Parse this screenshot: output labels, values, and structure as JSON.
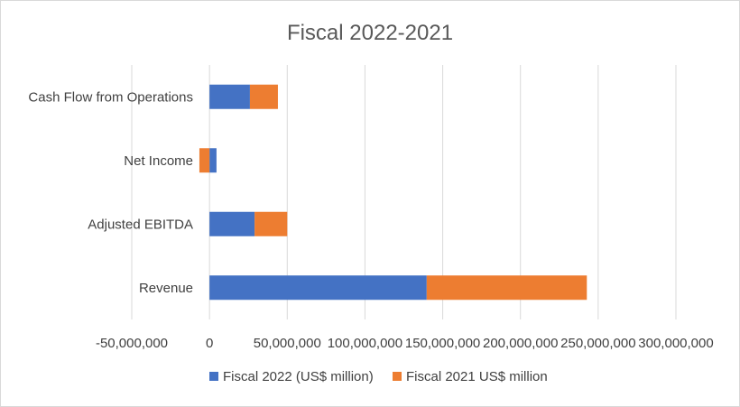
{
  "chart_data": {
    "type": "bar",
    "orientation": "horizontal",
    "stacked": true,
    "title": "Fiscal 2022-2021",
    "categories": [
      "Cash Flow from Operations",
      "Net Income",
      "Adjusted EBITDA",
      "Revenue"
    ],
    "series": [
      {
        "name": "Fiscal 2022 (US$ million)",
        "color": "#4472C4",
        "values": [
          26000000,
          4500000,
          29000000,
          139700000
        ]
      },
      {
        "name": "Fiscal 2021 US$ million",
        "color": "#ED7D31",
        "values": [
          18000000,
          -6500000,
          21000000,
          103000000
        ]
      }
    ],
    "xlim": [
      -50000000,
      300000000
    ],
    "xticks": [
      -50000000,
      0,
      50000000,
      100000000,
      150000000,
      200000000,
      250000000,
      300000000
    ],
    "xtick_labels": [
      "-50,000,000",
      "0",
      "50,000,000",
      "100,000,000",
      "150,000,000",
      "200,000,000",
      "250,000,000",
      "300,000,000"
    ],
    "grid": true,
    "legend_position": "bottom"
  }
}
